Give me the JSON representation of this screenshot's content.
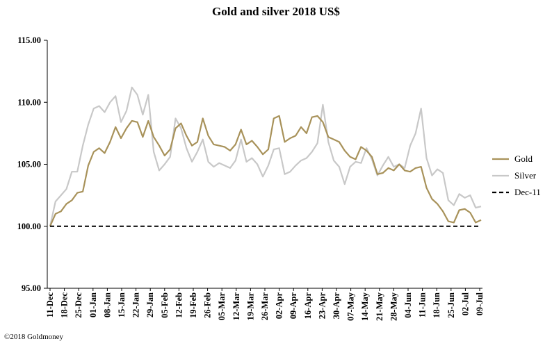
{
  "chart_data": {
    "type": "line",
    "title": "Gold and silver 2018  US$",
    "xlabel": "",
    "ylabel": "",
    "ylim": [
      95,
      115
    ],
    "y_ticks": [
      "95.00",
      "100.00",
      "105.00",
      "110.00",
      "115.00"
    ],
    "x_tick_labels": [
      "11-Dec",
      "18-Dec",
      "25-Dec",
      "01-Jan",
      "08-Jan",
      "15-Jan",
      "22-Jan",
      "29-Jan",
      "05-Feb",
      "12-Feb",
      "19-Feb",
      "26-Feb",
      "05-Mar",
      "12-Mar",
      "19-Mar",
      "26-Mar",
      "02-Apr",
      "09-Apr",
      "16-Apr",
      "23-Apr",
      "30-Apr",
      "07-May",
      "14-May",
      "21-May",
      "28-May",
      "04-Jun",
      "11-Jun",
      "18-Jun",
      "25-Jun",
      "02-Jul",
      "09-Jul"
    ],
    "grid": false,
    "legend_position": "right",
    "series": [
      {
        "name": "Gold",
        "color": "#a8925a",
        "style": "solid",
        "values": [
          100.0,
          101.0,
          101.2,
          101.8,
          102.1,
          102.7,
          102.8,
          104.9,
          106.0,
          106.3,
          105.9,
          106.8,
          108.0,
          107.1,
          107.9,
          108.5,
          108.4,
          107.2,
          108.5,
          107.2,
          106.5,
          105.7,
          106.2,
          107.9,
          108.3,
          107.3,
          106.5,
          106.8,
          108.7,
          107.3,
          106.6,
          106.5,
          106.4,
          106.1,
          106.6,
          107.8,
          106.6,
          106.9,
          106.4,
          105.8,
          106.2,
          108.7,
          108.9,
          106.8,
          107.1,
          107.3,
          108.0,
          107.5,
          108.8,
          108.9,
          108.4,
          107.2,
          107.0,
          106.8,
          106.1,
          105.6,
          105.4,
          106.4,
          106.1,
          105.6,
          104.2,
          104.3,
          104.7,
          104.5,
          105.0,
          104.5,
          104.4,
          104.7,
          104.8,
          103.1,
          102.2,
          101.8,
          101.2,
          100.4,
          100.3,
          101.3,
          101.4,
          101.1,
          100.3,
          100.5
        ],
        "ylabel": ""
      },
      {
        "name": "Silver",
        "color": "#c8c8c8",
        "style": "solid",
        "values": [
          100.0,
          102.0,
          102.5,
          103.0,
          104.4,
          104.4,
          106.5,
          108.2,
          109.5,
          109.7,
          109.2,
          110.0,
          110.5,
          108.4,
          109.3,
          111.2,
          110.6,
          109.0,
          110.6,
          106.0,
          104.5,
          105.0,
          105.6,
          108.7,
          107.9,
          106.3,
          105.2,
          106.0,
          107.0,
          105.2,
          104.8,
          105.1,
          104.9,
          104.7,
          105.3,
          107.0,
          105.2,
          105.5,
          105.0,
          104.0,
          104.9,
          106.2,
          106.3,
          104.2,
          104.4,
          104.9,
          105.3,
          105.5,
          106.0,
          106.7,
          109.8,
          106.8,
          105.3,
          104.8,
          103.4,
          104.8,
          105.2,
          105.1,
          106.3,
          105.4,
          104.1,
          104.9,
          105.6,
          104.8,
          105.0,
          104.7,
          106.5,
          107.5,
          109.5,
          105.5,
          104.1,
          104.6,
          104.3,
          102.1,
          101.7,
          102.6,
          102.3,
          102.5,
          101.5,
          101.6
        ],
        "ylabel": ""
      },
      {
        "name": "Dec-11",
        "color": "#000000",
        "style": "dashed",
        "values": [
          100.0,
          100.0
        ],
        "ylabel": ""
      }
    ]
  },
  "credit": "©2018 Goldmoney"
}
